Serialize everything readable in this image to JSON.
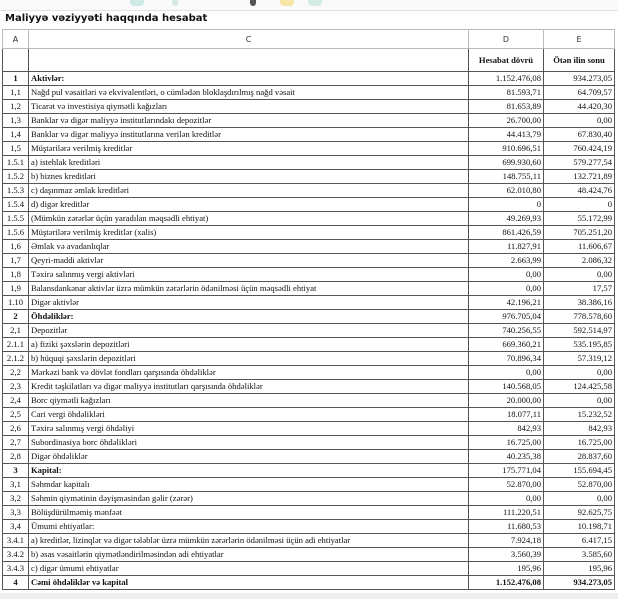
{
  "title": "Maliyyə vəziyyəti haqqında hesabat",
  "columns": [
    "A",
    "C",
    "D",
    "E"
  ],
  "headers": {
    "current": "Hesabat dövrü",
    "previous": "Ötən ilin sonu"
  },
  "rows": [
    {
      "num": "1",
      "label": "Aktivlər:",
      "d": "1.152.476,08",
      "e": "934.273,05",
      "bold": true
    },
    {
      "num": "1,1",
      "label": "Nağd pul vəsaitləri və  ekvivalentləri, o cümlədən bloklaşdırılmış nağd vəsait",
      "d": "81.593,71",
      "e": "64.709,57"
    },
    {
      "num": "1,2",
      "label": "Ticarət və investisiya qiymətli kağızları",
      "d": "81.653,89",
      "e": "44.420,30"
    },
    {
      "num": "1,3",
      "label": "Banklar və digər maliyyə institutlarındakı depozitlər",
      "d": "26.700,00",
      "e": "0,00"
    },
    {
      "num": "1,4",
      "label": "Banklar və digər maliyyə institutlarına verilən kreditlər",
      "d": "44.413,79",
      "e": "67.830,40"
    },
    {
      "num": "1,5",
      "label": "Müştərilərə verilmiş kreditlər",
      "d": "910.696,51",
      "e": "760.424,19"
    },
    {
      "num": "1.5.1",
      "label": "a) istehlak kreditləri",
      "d": "699.930,60",
      "e": "579.277,54"
    },
    {
      "num": "1.5.2",
      "label": "b) biznes kreditləri",
      "d": "148.755,11",
      "e": "132.721,89"
    },
    {
      "num": "1.5.3",
      "label": "c) daşınmaz əmlak kreditləri",
      "d": "62.010,80",
      "e": "48.424,76"
    },
    {
      "num": "1.5.4",
      "label": "d) digər kreditlər",
      "d": "0",
      "e": "0"
    },
    {
      "num": "1.5.5",
      "label": "(Mümkün zərərlər üçün yaradılan məqsədli ehtiyat)",
      "d": "49.269,93",
      "e": "55.172,99"
    },
    {
      "num": "1.5.6",
      "label": "Müştərilərə verilmiş kreditlər (xalis)",
      "d": "861.426,59",
      "e": "705.251,20"
    },
    {
      "num": "1,6",
      "label": "Əmlak və avadanlıqlar",
      "d": "11.827,91",
      "e": "11.606,67"
    },
    {
      "num": "1,7",
      "label": "Qeyri-maddi aktivlər",
      "d": "2.663,99",
      "e": "2.086,32"
    },
    {
      "num": "1,8",
      "label": "Təxirə salınmış vergi aktivləri",
      "d": "0,00",
      "e": "0,00"
    },
    {
      "num": "1,9",
      "label": "Balansdankənar aktivlər üzrə mümkün zərərlərin ödənilməsi üçün məqsədli ehtiyat",
      "d": "0,00",
      "e": "17,57"
    },
    {
      "num": "1.10",
      "label": "Digər aktivlər",
      "d": "42.196,21",
      "e": "38.386,16"
    },
    {
      "num": "2",
      "label": "Öhdəliklər:",
      "d": "976.705,04",
      "e": "778.578,60",
      "bold": true
    },
    {
      "num": "2,1",
      "label": "Depozitlər",
      "d": "740.256,55",
      "e": "592.514,97"
    },
    {
      "num": "2.1.1",
      "label": "a) fiziki şəxslərin depozitləri",
      "d": "669.360,21",
      "e": "535.195,85"
    },
    {
      "num": "2.1.2",
      "label": "b) hüquqi şəxslərin depozitləri",
      "d": "70.896,34",
      "e": "57.319,12"
    },
    {
      "num": "2,2",
      "label": "Mərkəzi bank və dövlət fondları qarşısında öhdəliklər",
      "d": "0,00",
      "e": "0,00"
    },
    {
      "num": "2,3",
      "label": "Kredit təşkilatları və digər maliyyə institutları qarşısında öhdəliklər",
      "d": "140.568,05",
      "e": "124.425,58"
    },
    {
      "num": "2,4",
      "label": "Borc qiymətli kağızları",
      "d": "20.000,00",
      "e": "0,00"
    },
    {
      "num": "2,5",
      "label": "Cari vergi öhdəlikləri",
      "d": "18.077,11",
      "e": "15.232,52"
    },
    {
      "num": "2,6",
      "label": "Təxirə salınmış vergi öhdəliyi",
      "d": "842,93",
      "e": "842,93"
    },
    {
      "num": "2,7",
      "label": "Subordinasiya borc öhdəlikləri",
      "d": "16.725,00",
      "e": "16.725,00"
    },
    {
      "num": "2,8",
      "label": "Digər öhdəliklər",
      "d": "40.235,38",
      "e": "28.837,60"
    },
    {
      "num": "3",
      "label": "Kapital:",
      "d": "175.771,04",
      "e": "155.694,45",
      "bold": true
    },
    {
      "num": "3,1",
      "label": "Səhmdar kapitalı",
      "d": "52.870,00",
      "e": "52.870,00"
    },
    {
      "num": "3,2",
      "label": "Səhmin qiymətinin dəyişməsindən gəlir (zərər)",
      "d": "0,00",
      "e": "0,00"
    },
    {
      "num": "3,3",
      "label": "Bölüşdürülməmiş mənfəət",
      "d": "111.220,51",
      "e": "92.625,75"
    },
    {
      "num": "3,4",
      "label": "Ümumi ehtiyatlar:",
      "d": "11.680,53",
      "e": "10.198,71"
    },
    {
      "num": "3.4.1",
      "label": "a) kreditlər, lizinqlər və digər tələblər üzrə mümkün zərərlərin ödənilməsi üçün adi ehtiyatlar",
      "d": "7.924,18",
      "e": "6.417,15"
    },
    {
      "num": "3.4.2",
      "label": "b) əsas vəsaitlərin qiymətləndirilməsindən adi ehtiyatlar",
      "d": "3.560,39",
      "e": "3.585,60"
    },
    {
      "num": "3.4.3",
      "label": "c) digər ümumi ehtiyatlar",
      "d": "195,96",
      "e": "195,96"
    },
    {
      "num": "4",
      "label": "Cəmi öhdəliklər və kapital",
      "d": "1.152.476,08",
      "e": "934.273,05",
      "bold": true,
      "total": true
    }
  ]
}
